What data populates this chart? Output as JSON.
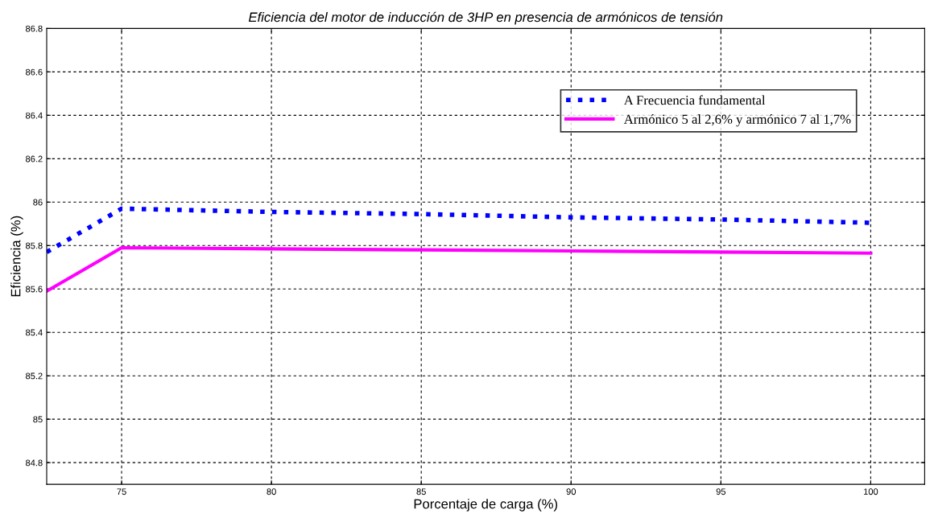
{
  "chart_data": {
    "type": "line",
    "title": "Eficiencia del motor de inducción de 3HP en presencia de armónicos de tensión",
    "xlabel": "Porcentaje de carga (%)",
    "ylabel": "Eficiencia (%)",
    "x": [
      72.5,
      75,
      80,
      85,
      90,
      95,
      100
    ],
    "series": [
      {
        "name": "A Frecuencia fundamental",
        "color": "#0000ff",
        "line_style": "dotted",
        "values": [
          85.77,
          85.97,
          85.955,
          85.945,
          85.93,
          85.92,
          85.905
        ]
      },
      {
        "name": "Armónico 5 al 2,6% y armónico 7 al 1,7%",
        "color": "#ff00ff",
        "line_style": "solid",
        "values": [
          85.59,
          85.79,
          85.785,
          85.78,
          85.775,
          85.77,
          85.765
        ]
      }
    ],
    "xlim": [
      72.5,
      101.8
    ],
    "ylim": [
      84.7,
      86.8
    ],
    "xticks": [
      75,
      80,
      85,
      90,
      95,
      100
    ],
    "yticks": [
      84.8,
      85,
      85.2,
      85.4,
      85.6,
      85.8,
      86,
      86.2,
      86.4,
      86.6,
      86.8
    ],
    "grid": true,
    "legend": "top right",
    "marker": "none"
  }
}
